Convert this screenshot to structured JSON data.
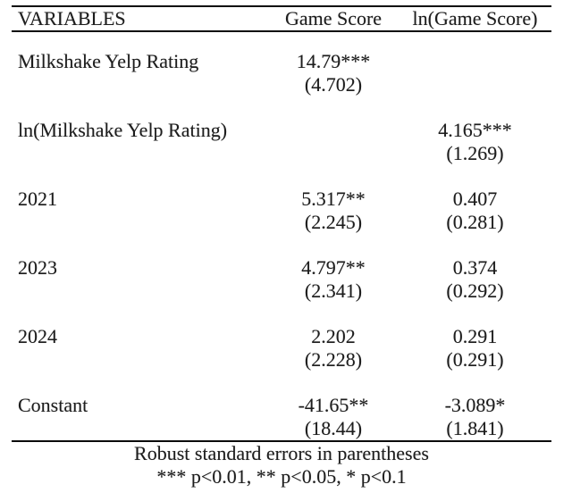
{
  "table": {
    "header": {
      "variables": "VARIABLES",
      "col1": "Game Score",
      "col2": "ln(Game Score)"
    },
    "rows": [
      {
        "label": "Milkshake Yelp Rating",
        "col1_coef": "14.79***",
        "col1_se": "(4.702)",
        "col2_coef": "",
        "col2_se": ""
      },
      {
        "label": "ln(Milkshake Yelp Rating)",
        "col1_coef": "",
        "col1_se": "",
        "col2_coef": "4.165***",
        "col2_se": "(1.269)"
      },
      {
        "label": "2021",
        "col1_coef": "5.317**",
        "col1_se": "(2.245)",
        "col2_coef": "0.407",
        "col2_se": "(0.281)"
      },
      {
        "label": "2023",
        "col1_coef": "4.797**",
        "col1_se": "(2.341)",
        "col2_coef": "0.374",
        "col2_se": "(0.292)"
      },
      {
        "label": "2024",
        "col1_coef": "2.202",
        "col1_se": "(2.228)",
        "col2_coef": "0.291",
        "col2_se": "(0.291)"
      },
      {
        "label": "Constant",
        "col1_coef": "-41.65**",
        "col1_se": "(18.44)",
        "col2_coef": "-3.089*",
        "col2_se": "(1.841)"
      }
    ],
    "notes": [
      "Robust standard errors in parentheses",
      "*** p<0.01, ** p<0.05, * p<0.1"
    ]
  },
  "colors": {
    "background": "#ffffff",
    "text": "#1d1d1d",
    "rule": "#0b0b0b"
  }
}
